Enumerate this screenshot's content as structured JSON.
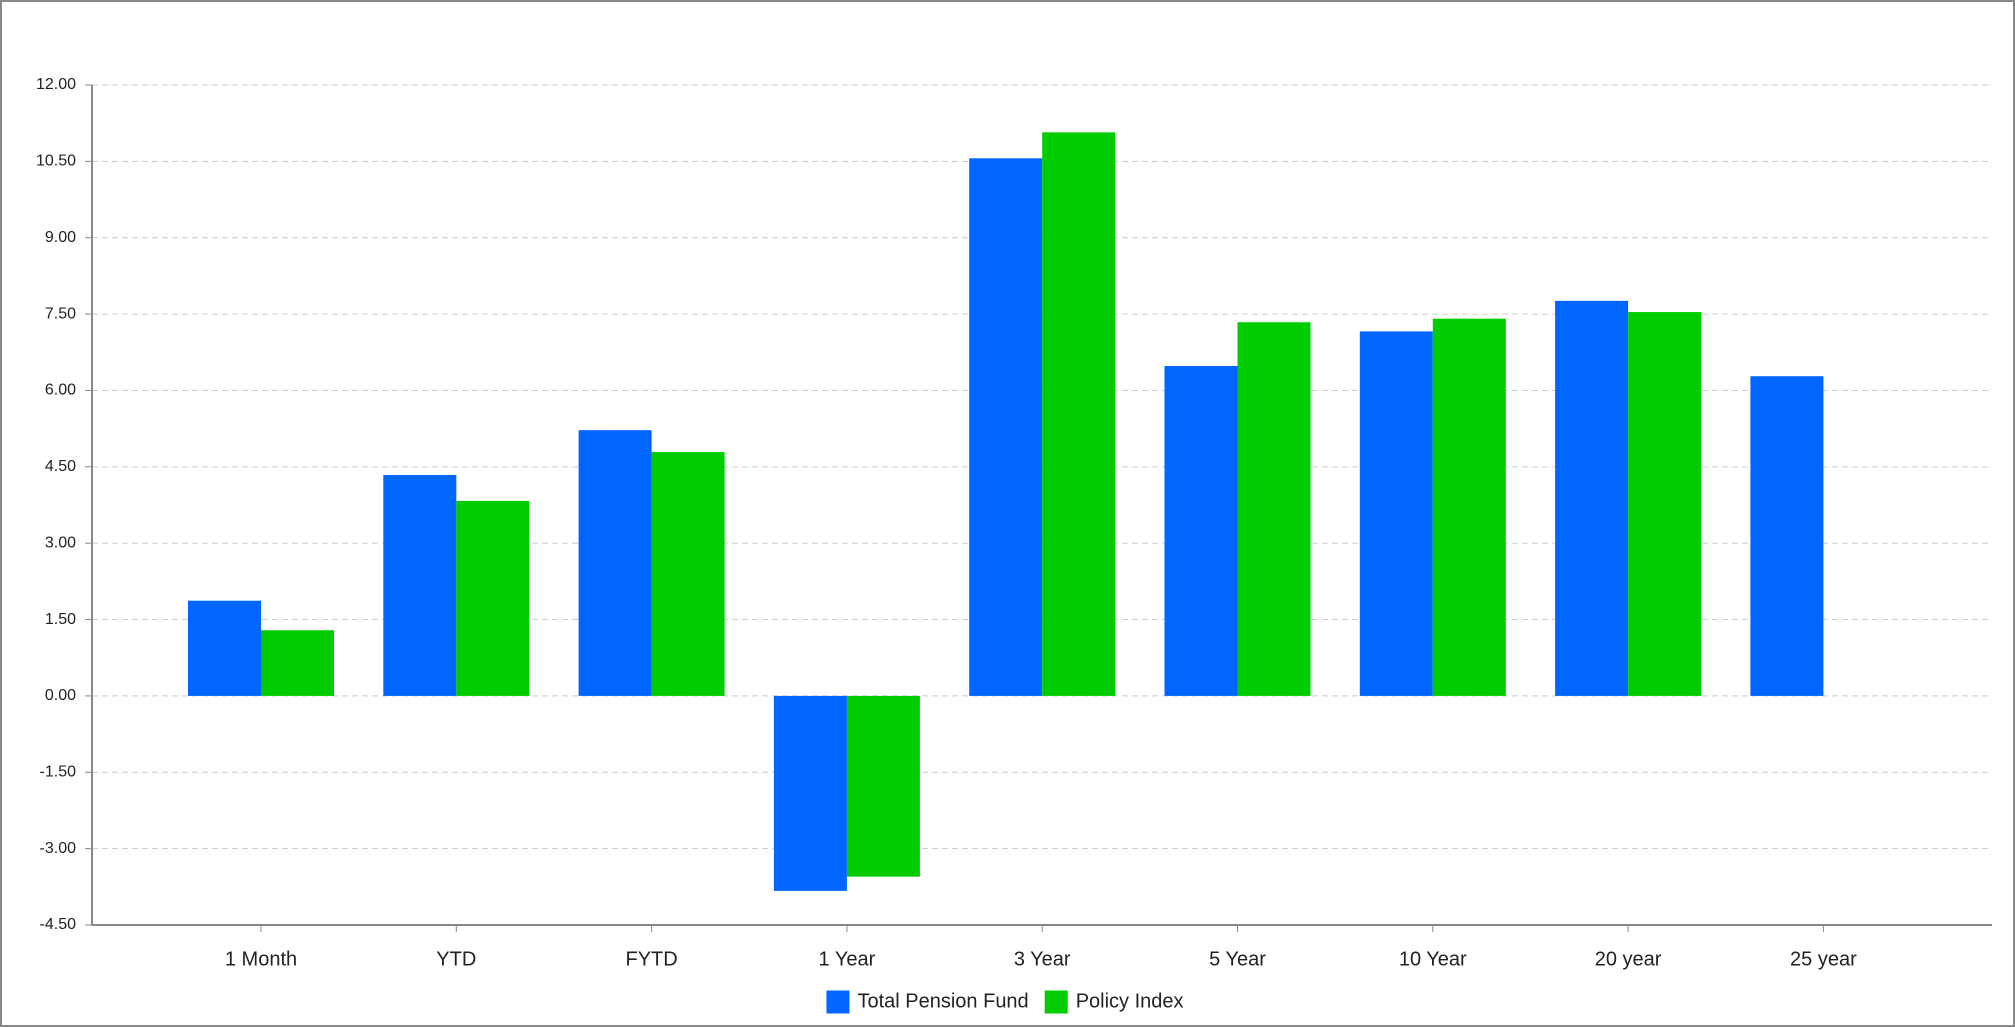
{
  "chart_data": {
    "type": "bar",
    "categories": [
      "1 Month",
      "YTD",
      "FYTD",
      "1 Year",
      "3 Year",
      "5 Year",
      "10 Year",
      "20 year",
      "25 year"
    ],
    "series": [
      {
        "name": "Total Pension Fund",
        "color": "#0066ff",
        "values": [
          1.87,
          4.34,
          5.22,
          -3.83,
          10.56,
          6.48,
          7.16,
          7.76,
          6.28
        ]
      },
      {
        "name": "Policy Index",
        "color": "#00cc00",
        "values": [
          1.29,
          3.83,
          4.79,
          -3.55,
          11.07,
          7.34,
          7.41,
          7.54,
          null
        ]
      }
    ],
    "ylim": [
      -4.5,
      12
    ],
    "yticks": [
      {
        "value": -4.5,
        "label": "-4.50"
      },
      {
        "value": -3,
        "label": "-3.00"
      },
      {
        "value": -1.5,
        "label": "-1.50"
      },
      {
        "value": 0,
        "label": "0.00"
      },
      {
        "value": 1.5,
        "label": "1.50"
      },
      {
        "value": 3,
        "label": "3.00"
      },
      {
        "value": 4.5,
        "label": "4.50"
      },
      {
        "value": 6,
        "label": "6.00"
      },
      {
        "value": 7.5,
        "label": "7.50"
      },
      {
        "value": 9,
        "label": "9.00"
      },
      {
        "value": 10.5,
        "label": "10.50"
      },
      {
        "value": 12,
        "label": "12.00"
      }
    ],
    "grid": true,
    "legend": "bottom"
  }
}
